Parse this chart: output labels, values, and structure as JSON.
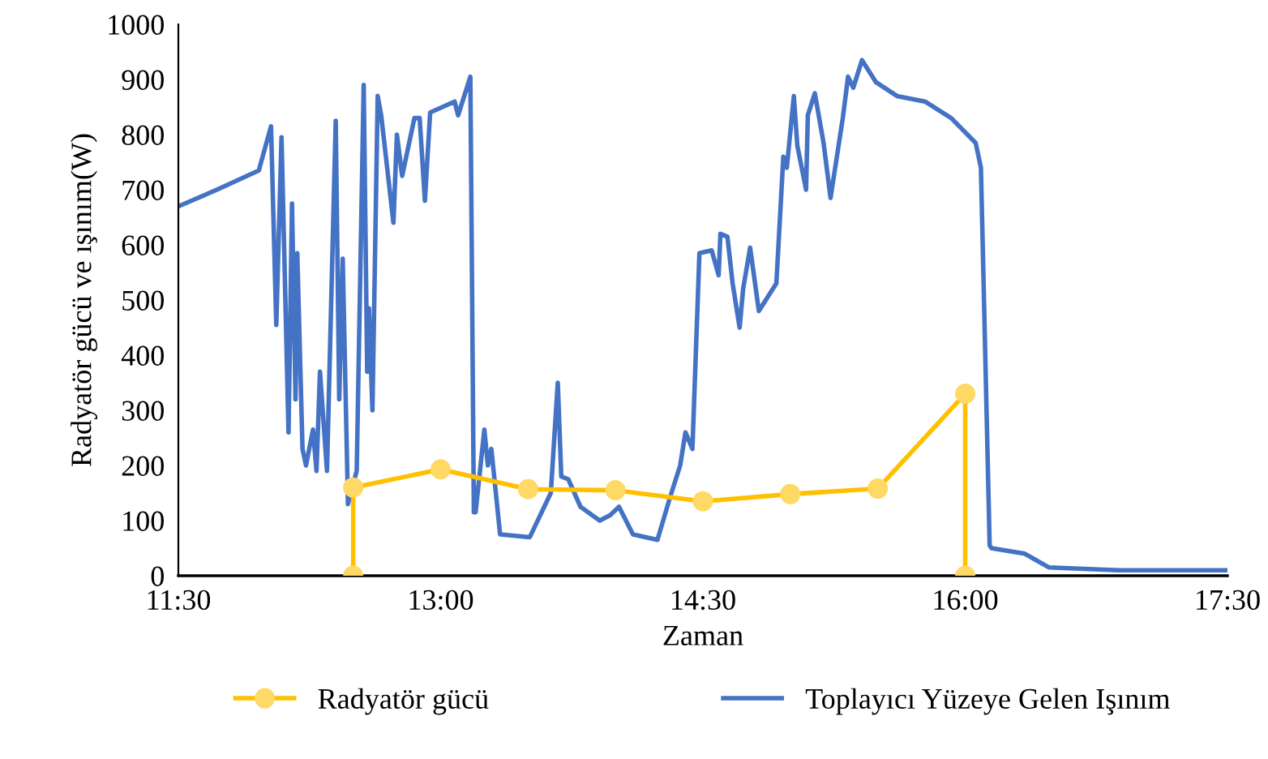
{
  "chart_data": {
    "type": "line",
    "xlabel": "Zaman",
    "ylabel": "Radyatör gücü ve ışınım(W)",
    "xlim": [
      11.5,
      17.5
    ],
    "xticks": [
      {
        "value": 11.5,
        "label": "11:30"
      },
      {
        "value": 13,
        "label": "13:00"
      },
      {
        "value": 14.5,
        "label": "14:30"
      },
      {
        "value": 16,
        "label": "16:00"
      },
      {
        "value": 17.5,
        "label": "17:30"
      }
    ],
    "ylim": [
      0,
      1000
    ],
    "yticks": [
      0,
      100,
      200,
      300,
      400,
      500,
      600,
      700,
      800,
      900,
      1000
    ],
    "grid": false,
    "legend": "bottom",
    "series": [
      {
        "name": "Radyatör gücü",
        "color": "#ffc000",
        "marker": "circle",
        "x": [
          12.5,
          12.5,
          13,
          13.5,
          14,
          14.5,
          15,
          15.5,
          16,
          16
        ],
        "values": [
          0,
          160,
          193,
          157,
          155,
          135,
          148,
          158,
          330,
          0
        ]
      },
      {
        "name": "Toplayıcı Yüzeye Gelen Işınım",
        "color": "#4472c4",
        "marker": "none",
        "x": [
          11.5,
          11.72,
          11.96,
          12.03,
          12.06,
          12.09,
          12.13,
          12.15,
          12.17,
          12.18,
          12.21,
          12.23,
          12.27,
          12.29,
          12.31,
          12.35,
          12.4,
          12.42,
          12.44,
          12.47,
          12.52,
          12.56,
          12.58,
          12.59,
          12.61,
          12.64,
          12.66,
          12.73,
          12.75,
          12.78,
          12.85,
          12.88,
          12.91,
          12.94,
          13.08,
          13.1,
          13.17,
          13.19,
          13.2,
          13.25,
          13.27,
          13.29,
          13.34,
          13.51,
          13.63,
          13.67,
          13.69,
          13.73,
          13.8,
          13.91,
          13.97,
          14.02,
          14.1,
          14.24,
          14.31,
          14.37,
          14.4,
          14.44,
          14.48,
          14.55,
          14.59,
          14.6,
          14.64,
          14.67,
          14.71,
          14.73,
          14.77,
          14.82,
          14.92,
          14.96,
          14.98,
          15.02,
          15.04,
          15.09,
          15.1,
          15.14,
          15.19,
          15.23,
          15.3,
          15.33,
          15.36,
          15.41,
          15.49,
          15.61,
          15.77,
          15.92,
          16.06,
          16.09,
          16.14,
          16.15,
          16.34,
          16.48,
          16.88,
          17.5
        ],
        "values": [
          670,
          700,
          735,
          815,
          455,
          795,
          260,
          675,
          320,
          585,
          230,
          200,
          265,
          190,
          370,
          190,
          825,
          320,
          575,
          130,
          190,
          890,
          370,
          485,
          300,
          870,
          835,
          640,
          800,
          725,
          830,
          830,
          680,
          840,
          860,
          835,
          905,
          115,
          115,
          265,
          200,
          230,
          75,
          70,
          150,
          350,
          180,
          175,
          125,
          100,
          110,
          125,
          75,
          65,
          140,
          200,
          260,
          230,
          585,
          590,
          545,
          620,
          615,
          530,
          450,
          520,
          595,
          480,
          530,
          760,
          740,
          870,
          780,
          700,
          835,
          875,
          785,
          685,
          830,
          905,
          885,
          935,
          895,
          870,
          860,
          830,
          785,
          740,
          55,
          50,
          40,
          15,
          10,
          10
        ]
      }
    ]
  }
}
